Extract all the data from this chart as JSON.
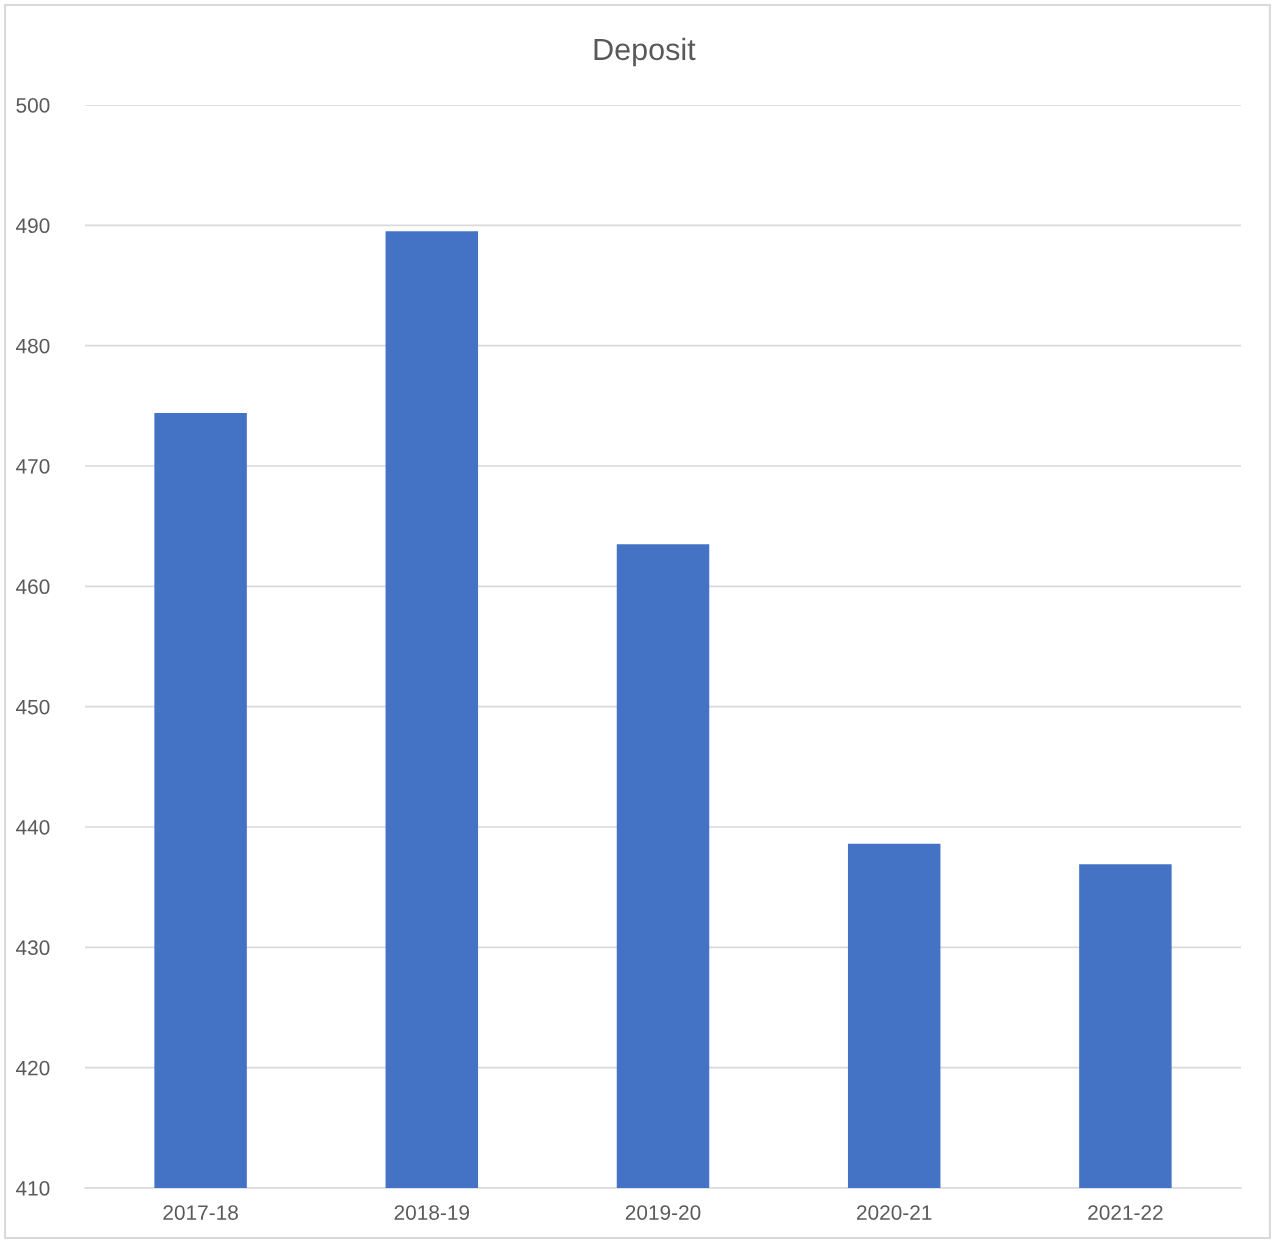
{
  "chart_data": {
    "type": "bar",
    "title": "Deposit",
    "categories": [
      "2017-18",
      "2018-19",
      "2019-20",
      "2020-21",
      "2021-22"
    ],
    "values": [
      474.4,
      489.5,
      463.5,
      438.6,
      436.9
    ],
    "color": "#4472c4",
    "ylim": [
      410,
      500
    ],
    "yticks": [
      410,
      420,
      430,
      440,
      450,
      460,
      470,
      480,
      490,
      500
    ],
    "grid": "y"
  }
}
